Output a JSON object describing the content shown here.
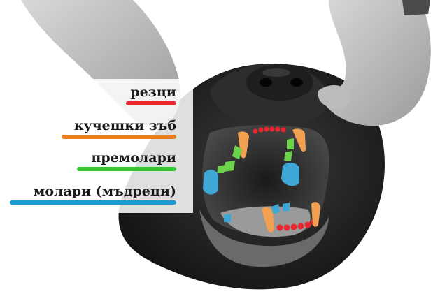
{
  "legend": {
    "items": [
      {
        "label": "резци",
        "color": "#e8282e"
      },
      {
        "label": "кучешки зъб",
        "color": "#e8801f"
      },
      {
        "label": "премолари",
        "color": "#2ec92e"
      },
      {
        "label": "молари (мъдреци)",
        "color": "#1b9ad6"
      }
    ]
  },
  "colors": {
    "incisors": "#e8282e",
    "canines": "#f0a050",
    "premolars": "#6cd44a",
    "molars": "#3fa7d6"
  }
}
